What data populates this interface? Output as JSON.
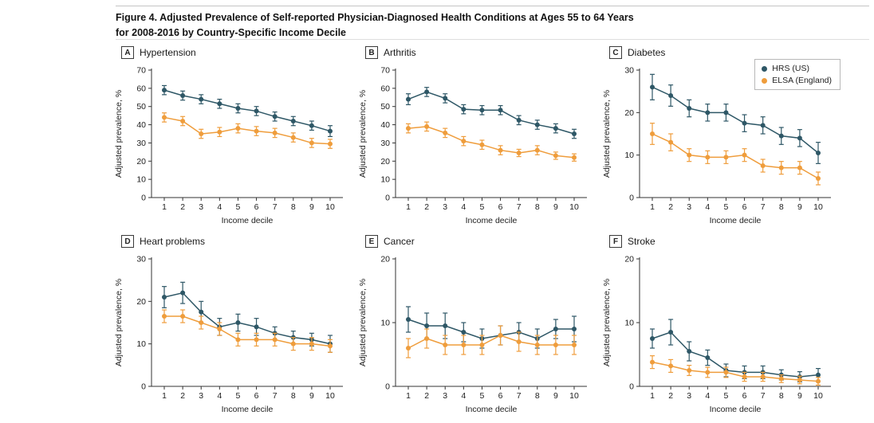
{
  "figure": {
    "title_line1": "Figure 4. Adjusted Prevalence of Self-reported Physician-Diagnosed Health Conditions at Ages 55 to 64 Years",
    "title_line2": "for 2008-2016 by Country-Specific Income Decile"
  },
  "colors": {
    "hrs": "#2e5766",
    "elsa": "#ef9d3c",
    "axis": "#333333",
    "text": "#222222"
  },
  "legend": {
    "items": [
      {
        "label": "HRS (US)",
        "color_key": "hrs"
      },
      {
        "label": "ELSA (England)",
        "color_key": "elsa"
      }
    ]
  },
  "chart_data": [
    {
      "type": "line",
      "panel": "A",
      "title": "Hypertension",
      "xlabel": "Income decile",
      "ylabel": "Adjusted prevalence, %",
      "x": [
        1,
        2,
        3,
        4,
        5,
        6,
        7,
        8,
        9,
        10
      ],
      "ylim": [
        0,
        70
      ],
      "ytick_step": 10,
      "grid": false,
      "series": [
        {
          "name": "HRS (US)",
          "color_key": "hrs",
          "values": [
            59,
            56,
            54,
            51.5,
            49,
            47.5,
            44.5,
            42,
            39.5,
            36.5
          ],
          "errors": [
            2.5,
            2.5,
            2.5,
            2.5,
            2.5,
            2.5,
            2.5,
            2.5,
            2.5,
            3
          ]
        },
        {
          "name": "ELSA (England)",
          "color_key": "elsa",
          "values": [
            44,
            42,
            35,
            36,
            38,
            36.5,
            35.5,
            33,
            30,
            29.5
          ],
          "errors": [
            2.5,
            2.5,
            2.5,
            2.5,
            2.5,
            2.5,
            2.5,
            2.5,
            2.5,
            2.5
          ]
        }
      ]
    },
    {
      "type": "line",
      "panel": "B",
      "title": "Arthritis",
      "xlabel": "Income decile",
      "ylabel": "Adjusted prevalence, %",
      "x": [
        1,
        2,
        3,
        4,
        5,
        6,
        7,
        8,
        9,
        10
      ],
      "ylim": [
        0,
        70
      ],
      "ytick_step": 10,
      "grid": false,
      "series": [
        {
          "name": "HRS (US)",
          "color_key": "hrs",
          "values": [
            54,
            58,
            54.5,
            48.5,
            48,
            48,
            42.5,
            40,
            38,
            35
          ],
          "errors": [
            3,
            2.5,
            2.5,
            2.5,
            2.5,
            2.5,
            2.5,
            2.5,
            2.5,
            2.5
          ]
        },
        {
          "name": "ELSA (England)",
          "color_key": "elsa",
          "values": [
            38,
            39,
            35.5,
            31,
            29,
            26,
            24.5,
            26,
            23,
            22
          ],
          "errors": [
            2.5,
            2.5,
            2.5,
            2.5,
            2.5,
            2.5,
            2,
            2.5,
            2,
            2
          ]
        }
      ]
    },
    {
      "type": "line",
      "panel": "C",
      "title": "Diabetes",
      "xlabel": "Income decile",
      "ylabel": "Adjusted prevalence, %",
      "x": [
        1,
        2,
        3,
        4,
        5,
        6,
        7,
        8,
        9,
        10
      ],
      "ylim": [
        0,
        30
      ],
      "ytick_step": 10,
      "grid": false,
      "series": [
        {
          "name": "HRS (US)",
          "color_key": "hrs",
          "values": [
            26,
            24,
            21,
            20,
            20,
            17.5,
            17,
            14.5,
            14,
            10.5
          ],
          "errors": [
            3,
            2.5,
            2,
            2,
            2,
            2,
            2,
            2,
            2,
            2.5
          ]
        },
        {
          "name": "ELSA (England)",
          "color_key": "elsa",
          "values": [
            15,
            13,
            10,
            9.5,
            9.5,
            10,
            7.5,
            7,
            7,
            4.5
          ],
          "errors": [
            2.5,
            2,
            1.5,
            1.5,
            1.5,
            1.5,
            1.5,
            1.5,
            1.5,
            1.5
          ]
        }
      ]
    },
    {
      "type": "line",
      "panel": "D",
      "title": "Heart problems",
      "xlabel": "Income decile",
      "ylabel": "Adjusted prevalence, %",
      "x": [
        1,
        2,
        3,
        4,
        5,
        6,
        7,
        8,
        9,
        10
      ],
      "ylim": [
        0,
        30
      ],
      "ytick_step": 10,
      "grid": false,
      "series": [
        {
          "name": "HRS (US)",
          "color_key": "hrs",
          "values": [
            21,
            22,
            17.5,
            14,
            15,
            14,
            12.5,
            11.5,
            11,
            10
          ],
          "errors": [
            2.5,
            2.5,
            2.5,
            2,
            2,
            2,
            1.5,
            1.5,
            1.5,
            2
          ]
        },
        {
          "name": "ELSA (England)",
          "color_key": "elsa",
          "values": [
            16.5,
            16.5,
            15,
            13.5,
            11,
            11,
            11,
            10,
            10,
            9.5
          ],
          "errors": [
            1.5,
            1.5,
            1.5,
            1.5,
            1.5,
            1.5,
            1.5,
            1.5,
            1.5,
            1.5
          ]
        }
      ]
    },
    {
      "type": "line",
      "panel": "E",
      "title": "Cancer",
      "xlabel": "Income decile",
      "ylabel": "Adjusted prevalence, %",
      "x": [
        1,
        2,
        3,
        4,
        5,
        6,
        7,
        8,
        9,
        10
      ],
      "ylim": [
        0,
        20
      ],
      "ytick_step": 10,
      "grid": false,
      "series": [
        {
          "name": "HRS (US)",
          "color_key": "hrs",
          "values": [
            10.5,
            9.5,
            9.5,
            8.5,
            7.5,
            8,
            8.5,
            7.5,
            9,
            9
          ],
          "errors": [
            2,
            2,
            2,
            1.5,
            1.5,
            1.5,
            1.5,
            1.5,
            1.5,
            2
          ]
        },
        {
          "name": "ELSA (England)",
          "color_key": "elsa",
          "values": [
            6,
            7.5,
            6.5,
            6.5,
            6.5,
            8,
            7,
            6.5,
            6.5,
            6.5
          ],
          "errors": [
            1.5,
            1.5,
            1.5,
            1.5,
            1.5,
            1.5,
            1.5,
            1.5,
            1.5,
            1.5
          ]
        }
      ]
    },
    {
      "type": "line",
      "panel": "F",
      "title": "Stroke",
      "xlabel": "Income decile",
      "ylabel": "Adjusted prevalence, %",
      "x": [
        1,
        2,
        3,
        4,
        5,
        6,
        7,
        8,
        9,
        10
      ],
      "ylim": [
        0,
        20
      ],
      "ytick_step": 10,
      "grid": false,
      "series": [
        {
          "name": "HRS (US)",
          "color_key": "hrs",
          "values": [
            7.5,
            8.5,
            5.5,
            4.5,
            2.5,
            2.2,
            2.2,
            1.8,
            1.5,
            1.8
          ],
          "errors": [
            1.5,
            2,
            1.5,
            1.2,
            1,
            1,
            1,
            0.8,
            0.8,
            1
          ]
        },
        {
          "name": "ELSA (England)",
          "color_key": "elsa",
          "values": [
            3.8,
            3.2,
            2.5,
            2.2,
            2.2,
            1.5,
            1.5,
            1.2,
            1,
            0.8
          ],
          "errors": [
            1,
            1,
            0.8,
            0.8,
            0.8,
            0.7,
            0.7,
            0.6,
            0.6,
            0.6
          ]
        }
      ]
    }
  ]
}
